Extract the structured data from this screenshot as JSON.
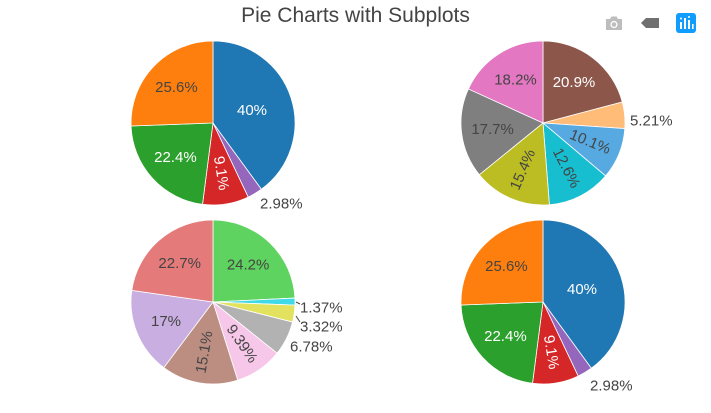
{
  "chart_data": {
    "title": "Pie Charts with Subplots",
    "type": "pie",
    "pies": [
      {
        "name": "top-left",
        "slices": [
          {
            "value": 40,
            "label": "40%",
            "color": "#1f77b4",
            "text_color": "#ffffff",
            "outside": false
          },
          {
            "value": 2.98,
            "label": "2.98%",
            "color": "#9467bd",
            "text_color": "#444444",
            "outside": true
          },
          {
            "value": 9.1,
            "label": "9.1%",
            "color": "#d62728",
            "text_color": "#ffffff",
            "outside": false,
            "rotate": true
          },
          {
            "value": 22.4,
            "label": "22.4%",
            "color": "#2ca02c",
            "text_color": "#ffffff",
            "outside": false
          },
          {
            "value": 25.6,
            "label": "25.6%",
            "color": "#ff7f0e",
            "text_color": "#444444",
            "outside": false
          }
        ]
      },
      {
        "name": "top-right",
        "slices": [
          {
            "value": 20.9,
            "label": "20.9%",
            "color": "#8c564b",
            "text_color": "#ffffff",
            "outside": false
          },
          {
            "value": 5.21,
            "label": "5.21%",
            "color": "#ffbb78",
            "text_color": "#444444",
            "outside": true
          },
          {
            "value": 10.1,
            "label": "10.1%",
            "color": "#57a9e2",
            "text_color": "#444444",
            "outside": false,
            "rotate": true
          },
          {
            "value": 12.6,
            "label": "12.6%",
            "color": "#17becf",
            "text_color": "#444444",
            "outside": false,
            "rotate": true
          },
          {
            "value": 15.4,
            "label": "15.4%",
            "color": "#bcbd22",
            "text_color": "#444444",
            "outside": false,
            "rotate": true
          },
          {
            "value": 17.7,
            "label": "17.7%",
            "color": "#7f7f7f",
            "text_color": "#444444",
            "outside": false
          },
          {
            "value": 18.2,
            "label": "18.2%",
            "color": "#e377c2",
            "text_color": "#444444",
            "outside": false
          }
        ]
      },
      {
        "name": "bottom-left",
        "slices": [
          {
            "value": 24.2,
            "label": "24.2%",
            "color": "#5fd35f",
            "text_color": "#444444",
            "outside": false
          },
          {
            "value": 1.37,
            "label": "1.37%",
            "color": "#40d9e7",
            "text_color": "#444444",
            "outside": true
          },
          {
            "value": 3.32,
            "label": "3.32%",
            "color": "#e2e25f",
            "text_color": "#444444",
            "outside": true
          },
          {
            "value": 6.78,
            "label": "6.78%",
            "color": "#b2b2b2",
            "text_color": "#444444",
            "outside": true
          },
          {
            "value": 9.39,
            "label": "9.39%",
            "color": "#f6c7e8",
            "text_color": "#444444",
            "outside": false,
            "rotate": true
          },
          {
            "value": 15.1,
            "label": "15.1%",
            "color": "#bc8e82",
            "text_color": "#444444",
            "outside": false,
            "rotate": true
          },
          {
            "value": 17,
            "label": "17%",
            "color": "#c9afe1",
            "text_color": "#444444",
            "outside": false
          },
          {
            "value": 22.7,
            "label": "22.7%",
            "color": "#e57a7a",
            "text_color": "#444444",
            "outside": false
          }
        ]
      },
      {
        "name": "bottom-right",
        "slices": [
          {
            "value": 40,
            "label": "40%",
            "color": "#1f77b4",
            "text_color": "#ffffff",
            "outside": false
          },
          {
            "value": 2.98,
            "label": "2.98%",
            "color": "#9467bd",
            "text_color": "#444444",
            "outside": true
          },
          {
            "value": 9.1,
            "label": "9.1%",
            "color": "#d62728",
            "text_color": "#ffffff",
            "outside": false,
            "rotate": true
          },
          {
            "value": 22.4,
            "label": "22.4%",
            "color": "#2ca02c",
            "text_color": "#ffffff",
            "outside": false
          },
          {
            "value": 25.6,
            "label": "25.6%",
            "color": "#ff7f0e",
            "text_color": "#444444",
            "outside": false
          }
        ]
      }
    ]
  },
  "modebar": {
    "camera_icon": "camera-icon",
    "tag_icon": "tag-icon",
    "plotly_icon": "plotly-logo-icon",
    "accent_color": "#119dff",
    "icon_color": "#bdbdbd"
  }
}
